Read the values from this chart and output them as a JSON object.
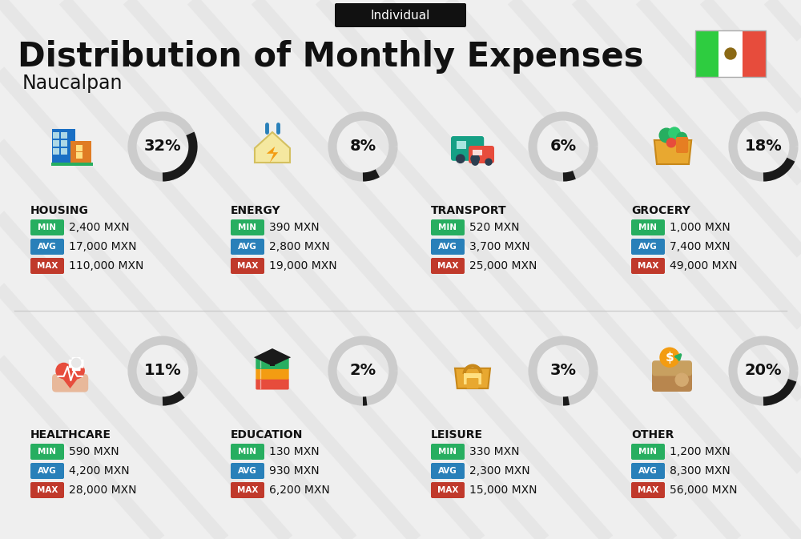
{
  "title": "Distribution of Monthly Expenses",
  "subtitle": "Individual",
  "location": "Naucalpan",
  "bg_color": "#efefef",
  "stripe_color": "#e0e0e0",
  "categories": [
    {
      "name": "HOUSING",
      "pct": 32,
      "min_val": "2,400 MXN",
      "avg_val": "17,000 MXN",
      "max_val": "110,000 MXN",
      "icon": "housing",
      "row": 0,
      "col": 0
    },
    {
      "name": "ENERGY",
      "pct": 8,
      "min_val": "390 MXN",
      "avg_val": "2,800 MXN",
      "max_val": "19,000 MXN",
      "icon": "energy",
      "row": 0,
      "col": 1
    },
    {
      "name": "TRANSPORT",
      "pct": 6,
      "min_val": "520 MXN",
      "avg_val": "3,700 MXN",
      "max_val": "25,000 MXN",
      "icon": "transport",
      "row": 0,
      "col": 2
    },
    {
      "name": "GROCERY",
      "pct": 18,
      "min_val": "1,000 MXN",
      "avg_val": "7,400 MXN",
      "max_val": "49,000 MXN",
      "icon": "grocery",
      "row": 0,
      "col": 3
    },
    {
      "name": "HEALTHCARE",
      "pct": 11,
      "min_val": "590 MXN",
      "avg_val": "4,200 MXN",
      "max_val": "28,000 MXN",
      "icon": "healthcare",
      "row": 1,
      "col": 0
    },
    {
      "name": "EDUCATION",
      "pct": 2,
      "min_val": "130 MXN",
      "avg_val": "930 MXN",
      "max_val": "6,200 MXN",
      "icon": "education",
      "row": 1,
      "col": 1
    },
    {
      "name": "LEISURE",
      "pct": 3,
      "min_val": "330 MXN",
      "avg_val": "2,300 MXN",
      "max_val": "15,000 MXN",
      "icon": "leisure",
      "row": 1,
      "col": 2
    },
    {
      "name": "OTHER",
      "pct": 20,
      "min_val": "1,200 MXN",
      "avg_val": "8,300 MXN",
      "max_val": "56,000 MXN",
      "icon": "other",
      "row": 1,
      "col": 3
    }
  ],
  "color_min": "#27ae60",
  "color_avg": "#2980b9",
  "color_max": "#c0392b",
  "arc_dark": "#1a1a1a",
  "arc_light": "#cccccc"
}
